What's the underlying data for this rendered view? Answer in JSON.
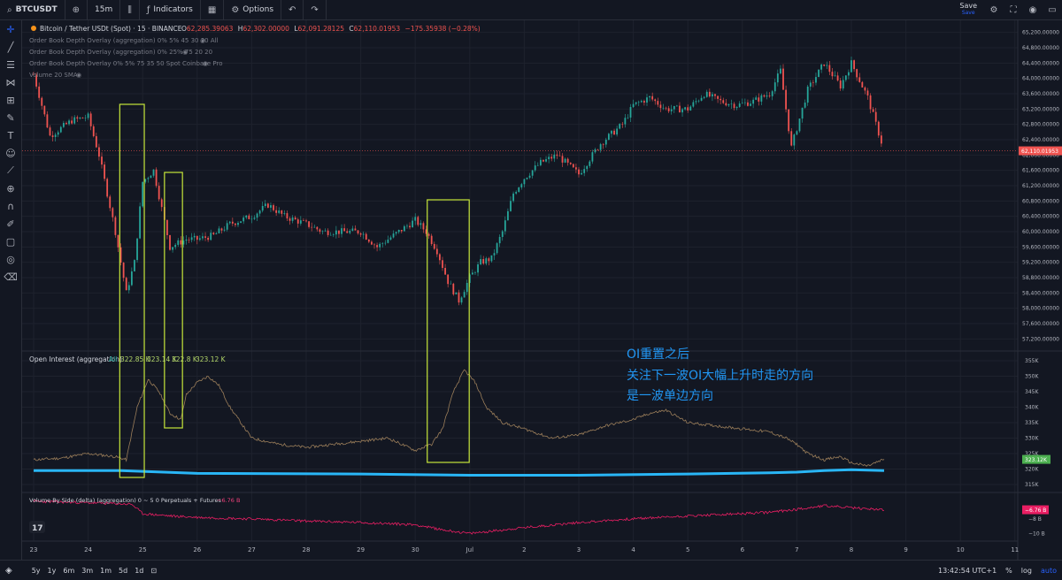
{
  "toolbar": {
    "symbol": "BTCUSDT",
    "timeframe": "15m",
    "indicators_label": "Indicators",
    "options_label": "Options",
    "save_label": "Save",
    "save_sub": "Save"
  },
  "legends": {
    "main_title": "Bitcoin / Tether USDt (Spot) · 15 · BINANCE",
    "ohlc": {
      "O": "62,285.39063",
      "H": "62,302.00000",
      "L": "62,091.28125",
      "C": "62,110.01953",
      "change": "−175.35938 (−0.28%)"
    },
    "overlays": [
      "Order Book Depth Overlay (aggregation) 0% 5% 45 30 30 All",
      "Order Book Depth Overlay (aggregation) 0% 25% 75 20 20",
      "Order Book Depth Overlay 0% 5% 75 35 50 Spot Coinbase Pro",
      "Volume 20 SMA"
    ],
    "oi_title": "Open Interest (aggregation)",
    "oi_mode": "All",
    "oi_values": [
      "322.85 K",
      "323.14 K",
      "322.8 K",
      "323.12 K"
    ],
    "vol_title": "Volume By Side (delta) (aggregation) 0 ~ 5 0 Perpetuals + Futures",
    "vol_value": "−6.76 B"
  },
  "annotation": {
    "lines": [
      "OI重置之后",
      "关注下一波OI大幅上升时走的方向",
      "是一波单边方向"
    ],
    "color": "#2196f3"
  },
  "bottombar": {
    "timeframes": [
      "5y",
      "1y",
      "6m",
      "3m",
      "1m",
      "5d",
      "1d"
    ],
    "time": "13:42:54 UTC+1",
    "pct": "%",
    "log": "log",
    "auto": "auto"
  },
  "chart_data": [
    {
      "type": "line",
      "name": "price",
      "x_dates": [
        "23",
        "24",
        "25",
        "26",
        "27",
        "28",
        "29",
        "30",
        "Jul",
        "2",
        "3",
        "4",
        "5",
        "6",
        "7",
        "8",
        "9",
        "10",
        "11"
      ],
      "x_ticks_px_note": "",
      "y_ticks": [
        "65,200.00000",
        "64,800.00000",
        "64,400.00000",
        "64,000.00000",
        "63,600.00000",
        "63,200.00000",
        "62,800.00000",
        "62,400.00000",
        "62,000.00000",
        "61,600.00000",
        "61,200.00000",
        "60,800.00000",
        "60,400.00000",
        "60,000.00000",
        "59,600.00000",
        "59,200.00000",
        "58,800.00000",
        "58,400.00000",
        "58,000.00000",
        "57,600.00000",
        "57,200.00000"
      ],
      "ylim": [
        57000,
        65400
      ],
      "last_price": "62,110.01953",
      "series": [
        {
          "x": [
            0,
            0.3,
            0.5,
            0.7,
            1.0,
            1.2,
            1.5,
            1.7,
            1.85,
            2.0,
            2.2,
            2.5,
            2.8,
            3.0,
            3.3,
            3.6,
            4.0,
            4.3,
            4.6,
            5.0,
            5.3,
            5.6,
            6.0,
            6.3,
            6.5,
            6.7,
            6.9,
            7.0,
            7.2,
            7.4,
            7.6,
            7.8,
            8.0,
            8.2,
            8.4,
            8.6,
            8.8,
            9.0,
            9.3,
            9.6,
            10.0,
            10.4,
            10.8,
            11.0,
            11.3,
            11.6,
            12.0,
            12.3,
            12.6,
            12.9,
            13.2,
            13.5,
            13.7,
            13.9,
            14.2,
            14.5,
            14.8,
            15.0,
            15.3,
            15.6
          ],
          "y": [
            64100,
            62500,
            62700,
            62900,
            63000,
            62000,
            60000,
            58400,
            59200,
            61300,
            61600,
            59600,
            59800,
            59800,
            59900,
            60200,
            60400,
            60700,
            60400,
            60200,
            60000,
            60000,
            60000,
            59600,
            59800,
            60000,
            60200,
            60300,
            60000,
            59500,
            58700,
            58200,
            58800,
            59200,
            59300,
            60000,
            61000,
            61400,
            61800,
            62000,
            61500,
            62300,
            62800,
            63300,
            63500,
            63200,
            63200,
            63600,
            63400,
            63300,
            63400,
            63600,
            64200,
            62200,
            63700,
            64400,
            63800,
            64400,
            63500,
            62110
          ]
        }
      ]
    },
    {
      "type": "line",
      "name": "open_interest",
      "y_ticks": [
        "355K",
        "350K",
        "345K",
        "340K",
        "335K",
        "330K",
        "325K",
        "320K",
        "315K"
      ],
      "ylim": [
        313000,
        357000
      ],
      "last_value": "323.12K",
      "series": [
        {
          "x": [
            0,
            0.5,
            1.0,
            1.5,
            1.7,
            1.9,
            2.1,
            2.3,
            2.5,
            2.7,
            2.8,
            3.0,
            3.2,
            3.4,
            3.6,
            4.0,
            4.5,
            5.0,
            5.5,
            6.0,
            6.5,
            7.0,
            7.3,
            7.5,
            7.7,
            7.9,
            8.1,
            8.3,
            8.6,
            9.0,
            9.5,
            10.0,
            10.5,
            11.0,
            11.3,
            11.6,
            12.0,
            12.5,
            13.0,
            13.5,
            13.8,
            14.0,
            14.2,
            14.5,
            14.8,
            15.0,
            15.3,
            15.6
          ],
          "y": [
            323000,
            323500,
            325000,
            324000,
            323000,
            340000,
            349000,
            345000,
            338000,
            336000,
            344000,
            348000,
            350000,
            347000,
            340000,
            330000,
            328000,
            327000,
            328000,
            329000,
            330000,
            326000,
            328000,
            333000,
            345000,
            352000,
            348000,
            340000,
            335000,
            333000,
            330000,
            331000,
            334000,
            336000,
            338000,
            339000,
            335000,
            334000,
            333000,
            332000,
            330000,
            328000,
            325000,
            323000,
            324000,
            322000,
            321000,
            323120
          ]
        },
        {
          "name": "trend",
          "x": [
            0,
            1.6,
            3.0,
            6.0,
            8.0,
            10.0,
            12.0,
            13.5,
            14.0,
            14.5,
            15.0,
            15.6
          ],
          "y": [
            319500,
            319500,
            318600,
            318400,
            318000,
            318000,
            318400,
            318800,
            319000,
            319500,
            319800,
            319500
          ]
        }
      ],
      "highlight_boxes": [
        {
          "x_range": [
            1.58,
            2.03
          ],
          "note": ""
        },
        {
          "x_range": [
            2.4,
            2.73
          ],
          "note": ""
        },
        {
          "x_range": [
            7.22,
            7.99
          ],
          "note": ""
        }
      ]
    },
    {
      "type": "line",
      "name": "volume_delta",
      "y_ticks": [
        "−8 B",
        "−10 B"
      ],
      "last_value": "−6.76 B",
      "series": [
        {
          "x": [
            0,
            1.0,
            1.8,
            2.0,
            2.5,
            3.0,
            4.0,
            5.0,
            6.0,
            7.0,
            7.5,
            8.0,
            8.5,
            9.0,
            10.0,
            11.0,
            12.0,
            13.0,
            13.5,
            14.0,
            14.5,
            15.0,
            15.6
          ],
          "y": [
            -5.6,
            -5.8,
            -6.0,
            -7.3,
            -7.6,
            -7.8,
            -8.0,
            -8.3,
            -8.5,
            -8.8,
            -9.5,
            -10.0,
            -9.6,
            -9.2,
            -8.5,
            -8.0,
            -7.6,
            -7.3,
            -7.1,
            -6.7,
            -6.2,
            -6.5,
            -6.76
          ]
        }
      ]
    }
  ]
}
